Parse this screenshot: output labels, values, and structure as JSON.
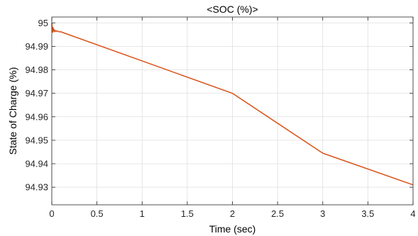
{
  "chart_data": {
    "type": "line",
    "title": "<SOC (%)>",
    "xlabel": "Time (sec)",
    "ylabel": "State of Charge (%)",
    "xlim": [
      0,
      4
    ],
    "ylim": [
      94.9225,
      95.0025
    ],
    "xticks": [
      0,
      0.5,
      1,
      1.5,
      2,
      2.5,
      3,
      3.5,
      4
    ],
    "xtick_labels": [
      "0",
      "0.5",
      "1",
      "1.5",
      "2",
      "2.5",
      "3",
      "3.5",
      "4"
    ],
    "yticks": [
      94.93,
      94.94,
      94.95,
      94.96,
      94.97,
      94.98,
      94.99,
      95
    ],
    "ytick_labels": [
      "94.93",
      "94.94",
      "94.95",
      "94.96",
      "94.97",
      "94.98",
      "94.99",
      "95"
    ],
    "grid": true,
    "series": [
      {
        "color": "#D95319",
        "x": [
          0,
          0.005,
          0.01,
          0.015,
          0.02,
          0.025,
          0.03,
          0.04,
          0.05,
          0.06,
          0.08,
          0.1,
          2,
          3,
          4
        ],
        "y": [
          95.0,
          94.9975,
          94.996,
          94.998,
          94.9965,
          94.9972,
          94.9962,
          94.9968,
          94.9963,
          94.9966,
          94.9962,
          94.9962,
          94.97,
          94.9445,
          94.931
        ]
      }
    ]
  }
}
